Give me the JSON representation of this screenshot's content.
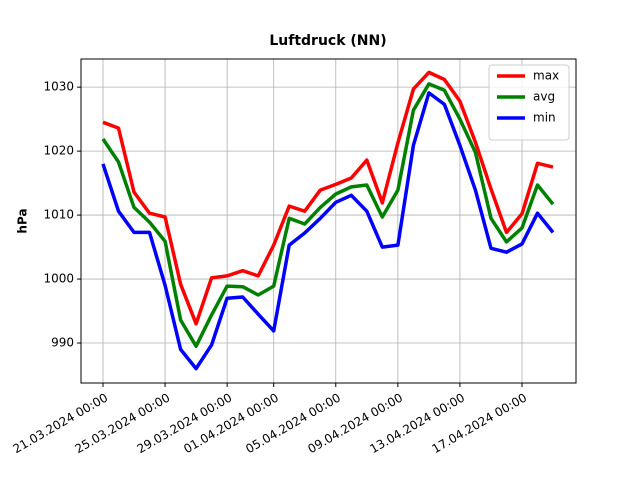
{
  "chart_data": {
    "type": "line",
    "title": "Luftdruck (NN)",
    "ylabel": "hPa",
    "x": [
      "2024-03-21",
      "2024-03-22",
      "2024-03-23",
      "2024-03-24",
      "2024-03-25",
      "2024-03-26",
      "2024-03-27",
      "2024-03-28",
      "2024-03-29",
      "2024-03-30",
      "2024-03-31",
      "2024-04-01",
      "2024-04-02",
      "2024-04-03",
      "2024-04-04",
      "2024-04-05",
      "2024-04-06",
      "2024-04-07",
      "2024-04-08",
      "2024-04-09",
      "2024-04-10",
      "2024-04-11",
      "2024-04-12",
      "2024-04-13",
      "2024-04-14",
      "2024-04-15",
      "2024-04-16",
      "2024-04-17",
      "2024-04-18",
      "2024-04-19"
    ],
    "series": [
      {
        "name": "max",
        "color": "#ff0000",
        "values": [
          1024.5,
          1023.6,
          1013.6,
          1010.3,
          1009.7,
          999.2,
          993,
          1000.2,
          1000.5,
          1001.3,
          1000.5,
          1005.3,
          1011.4,
          1010.6,
          1013.9,
          1014.8,
          1015.8,
          1018.6,
          1011.9,
          1021.3,
          1029.7,
          1032.3,
          1031.2,
          1027.8,
          1021.4,
          1014.1,
          1007.3,
          1010.2,
          1018.1,
          1017.5
        ]
      },
      {
        "name": "avg",
        "color": "#008000",
        "values": [
          1021.9,
          1018.3,
          1011.2,
          1008.9,
          1005.9,
          993.6,
          989.5,
          994.4,
          998.9,
          998.8,
          997.5,
          998.9,
          1009.5,
          1008.6,
          1011.2,
          1013.3,
          1014.4,
          1014.7,
          1009.7,
          1013.9,
          1026.4,
          1030.5,
          1029.5,
          1025,
          1019.8,
          1009.5,
          1005.8,
          1008,
          1014.7,
          1011.7
        ]
      },
      {
        "name": "min",
        "color": "#0000ff",
        "values": [
          1018,
          1010.6,
          1007.3,
          1007.3,
          999,
          989,
          986,
          989.7,
          997,
          997.2,
          994.5,
          991.9,
          1005.3,
          1007.2,
          1009.5,
          1012,
          1013.1,
          1010.6,
          1005,
          1005.3,
          1020.9,
          1029.1,
          1027.3,
          1020.9,
          1013.9,
          1004.8,
          1004.2,
          1005.5,
          1010.3,
          1007.3
        ]
      }
    ],
    "xlim": [
      "2024-03-19T14:00",
      "2024-04-20T11:30"
    ],
    "xticks": [
      {
        "value": "2024-03-21",
        "label": "21.03.2024 00:00"
      },
      {
        "value": "2024-03-25",
        "label": "25.03.2024 00:00"
      },
      {
        "value": "2024-03-29",
        "label": "29.03.2024 00:00"
      },
      {
        "value": "2024-04-01",
        "label": "01.04.2024 00:00"
      },
      {
        "value": "2024-04-05",
        "label": "05.04.2024 00:00"
      },
      {
        "value": "2024-04-09",
        "label": "09.04.2024 00:00"
      },
      {
        "value": "2024-04-13",
        "label": "13.04.2024 00:00"
      },
      {
        "value": "2024-04-17",
        "label": "17.04.2024 00:00"
      }
    ],
    "ylim": [
      983.75,
      1034.4
    ],
    "yticks": [
      990,
      1000,
      1010,
      1020,
      1030
    ],
    "grid": true,
    "legend": "upper right"
  }
}
